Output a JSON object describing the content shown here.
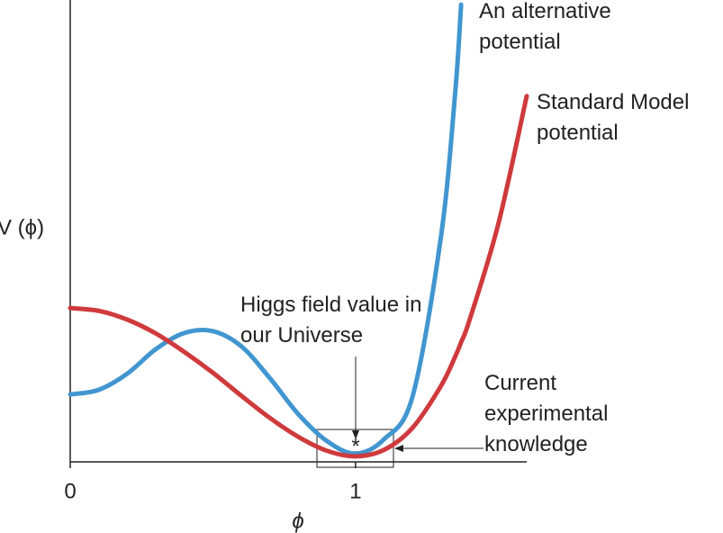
{
  "chart_data": {
    "type": "line",
    "ylabel": "V (ϕ)",
    "xlabel": "ϕ",
    "x": [
      0,
      0.1,
      0.2,
      0.3,
      0.4,
      0.5,
      0.6,
      0.7,
      0.8,
      0.9,
      1.0,
      1.1,
      1.2,
      1.3,
      1.35,
      1.37,
      1.4,
      1.5,
      1.6
    ],
    "series": [
      {
        "name": "An alternative potential",
        "color": "#4196d0",
        "values": [
          1.46,
          1.56,
          1.91,
          2.44,
          2.79,
          2.83,
          2.5,
          1.81,
          1.03,
          0.45,
          0.18,
          0.49,
          1.42,
          4.9,
          8.05,
          9.9,
          null,
          null,
          null
        ]
      },
      {
        "name": "Standard Model potential",
        "color": "#cf3a3d",
        "values": [
          3.33,
          3.27,
          3.08,
          2.78,
          2.38,
          1.93,
          1.43,
          0.95,
          0.54,
          0.24,
          0.12,
          0.26,
          0.74,
          1.65,
          2.29,
          2.59,
          3.08,
          5.14,
          7.92
        ]
      }
    ],
    "xlim": [
      0,
      1.6
    ],
    "xticks": [
      0,
      1
    ],
    "ylim": [
      0,
      10
    ],
    "annotations": [
      "Higgs field value in our Universe",
      "*",
      "Current experimental knowledge"
    ]
  }
}
